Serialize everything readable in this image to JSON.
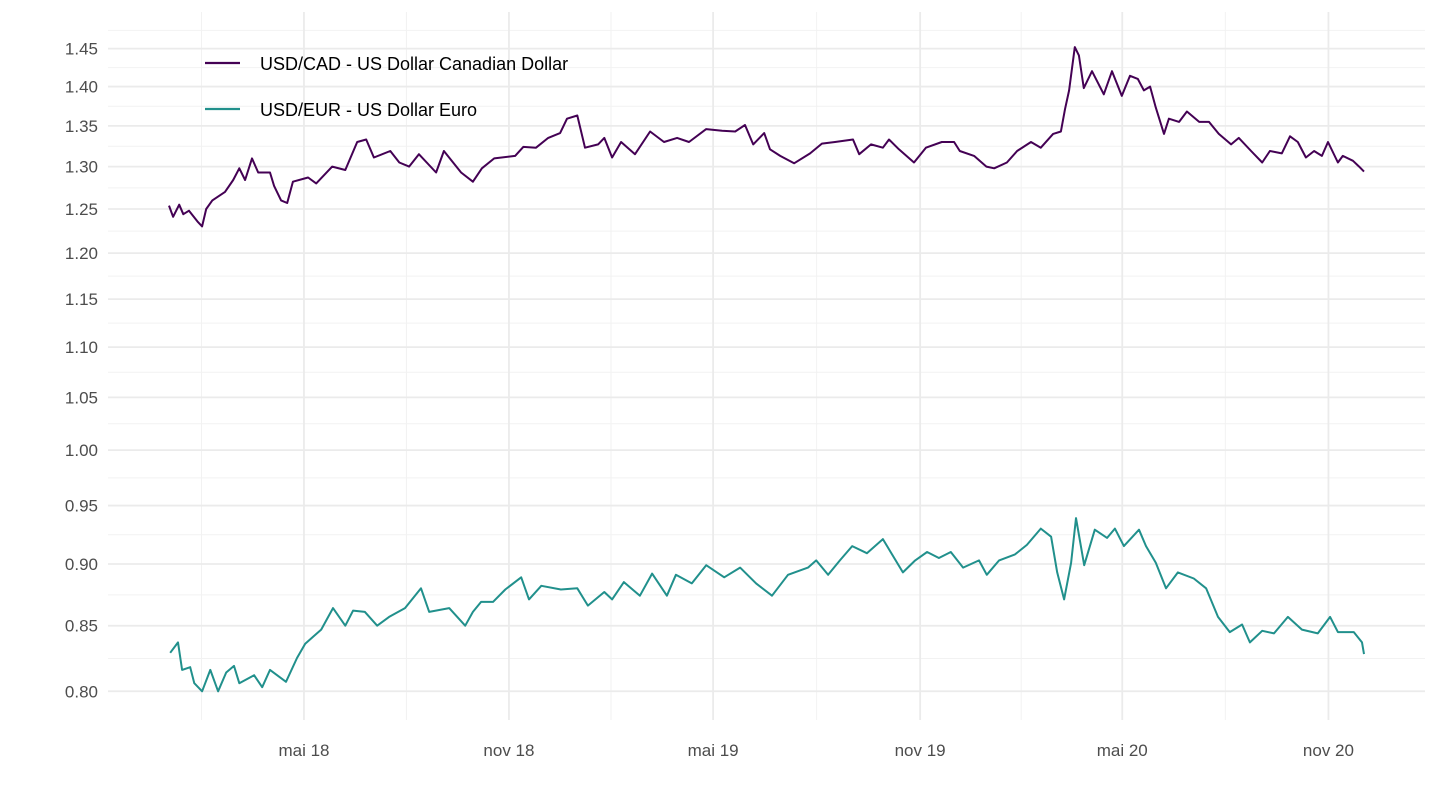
{
  "chart_data": {
    "type": "line",
    "title": "",
    "xlabel": "",
    "ylabel": "",
    "y_scale": "log",
    "ylim": [
      0.779,
      1.5
    ],
    "xlim": [
      2017.853,
      2021.072
    ],
    "x_units": "decimal year",
    "grid": true,
    "legend_position": "top-left",
    "y_ticks": [
      0.8,
      0.85,
      0.9,
      0.95,
      1.0,
      1.05,
      1.1,
      1.15,
      1.2,
      1.25,
      1.3,
      1.35,
      1.4,
      1.45
    ],
    "y_tick_labels": [
      "0.80",
      "0.85",
      "0.90",
      "0.95",
      "1.00",
      "1.05",
      "1.10",
      "1.15",
      "1.20",
      "1.25",
      "1.30",
      "1.35",
      "1.40",
      "1.45"
    ],
    "x_ticks": [
      2018.332,
      2018.833,
      2019.332,
      2019.838,
      2020.332,
      2020.836
    ],
    "x_tick_labels": [
      "mai 18",
      "nov 18",
      "mai 19",
      "nov 19",
      "mai 20",
      "nov 20"
    ],
    "series": [
      {
        "name": "USD/CAD - US Dollar Canadian Dollar",
        "color": "#440154",
        "x": [
          2018.002,
          2018.012,
          2018.027,
          2018.037,
          2018.051,
          2018.073,
          2018.083,
          2018.093,
          2018.108,
          2018.139,
          2018.159,
          2018.174,
          2018.188,
          2018.205,
          2018.22,
          2018.249,
          2018.259,
          2018.276,
          2018.291,
          2018.305,
          2018.342,
          2018.362,
          2018.401,
          2018.433,
          2018.462,
          2018.484,
          2018.503,
          2018.543,
          2018.565,
          2018.589,
          2018.613,
          2018.655,
          2018.674,
          2018.716,
          2018.745,
          2018.767,
          2018.797,
          2018.848,
          2018.868,
          2018.899,
          2018.929,
          2018.958,
          2018.975,
          2019.0,
          2019.019,
          2019.051,
          2019.066,
          2019.085,
          2019.107,
          2019.141,
          2019.178,
          2019.212,
          2019.244,
          2019.273,
          2019.315,
          2019.354,
          2019.386,
          2019.41,
          2019.43,
          2019.457,
          2019.471,
          2019.496,
          2019.53,
          2019.569,
          2019.598,
          2019.63,
          2019.674,
          2019.689,
          2019.718,
          2019.747,
          2019.762,
          2019.786,
          2019.823,
          2019.852,
          2019.891,
          2019.921,
          2019.935,
          2019.97,
          2020.0,
          2020.019,
          2020.05,
          2020.075,
          2020.109,
          2020.133,
          2020.163,
          2020.182,
          2020.192,
          2020.202,
          2020.216,
          2020.226,
          2020.238,
          2020.258,
          2020.287,
          2020.307,
          2020.331,
          2020.351,
          2020.37,
          2020.385,
          2020.4,
          2020.414,
          2020.434,
          2020.446,
          2020.471,
          2020.49,
          2020.52,
          2020.544,
          2020.568,
          2020.598,
          2020.617,
          2020.647,
          2020.674,
          2020.693,
          2020.722,
          2020.742,
          2020.761,
          2020.781,
          2020.801,
          2020.82,
          2020.835,
          2020.859,
          2020.871,
          2020.896,
          2020.911,
          2020.923
        ],
        "values": [
          1.254,
          1.241,
          1.255,
          1.244,
          1.248,
          1.235,
          1.23,
          1.25,
          1.26,
          1.27,
          1.284,
          1.298,
          1.284,
          1.31,
          1.293,
          1.293,
          1.277,
          1.26,
          1.257,
          1.282,
          1.287,
          1.28,
          1.3,
          1.296,
          1.33,
          1.333,
          1.311,
          1.319,
          1.305,
          1.3,
          1.315,
          1.293,
          1.319,
          1.293,
          1.282,
          1.298,
          1.31,
          1.313,
          1.324,
          1.323,
          1.335,
          1.341,
          1.359,
          1.363,
          1.323,
          1.327,
          1.335,
          1.311,
          1.33,
          1.315,
          1.343,
          1.33,
          1.335,
          1.33,
          1.346,
          1.344,
          1.343,
          1.351,
          1.327,
          1.341,
          1.321,
          1.313,
          1.304,
          1.316,
          1.328,
          1.33,
          1.333,
          1.315,
          1.327,
          1.323,
          1.333,
          1.321,
          1.305,
          1.323,
          1.33,
          1.33,
          1.319,
          1.313,
          1.3,
          1.298,
          1.305,
          1.319,
          1.33,
          1.323,
          1.34,
          1.343,
          1.371,
          1.395,
          1.452,
          1.441,
          1.398,
          1.42,
          1.39,
          1.42,
          1.388,
          1.414,
          1.41,
          1.395,
          1.4,
          1.373,
          1.34,
          1.359,
          1.355,
          1.368,
          1.355,
          1.355,
          1.34,
          1.327,
          1.335,
          1.319,
          1.305,
          1.319,
          1.316,
          1.337,
          1.33,
          1.311,
          1.319,
          1.313,
          1.33,
          1.305,
          1.313,
          1.307,
          1.3,
          1.294
        ]
      },
      {
        "name": "USD/EUR - US Dollar Euro",
        "color": "#21908C",
        "x": [
          2018.005,
          2018.024,
          2018.034,
          2018.054,
          2018.064,
          2018.083,
          2018.103,
          2018.122,
          2018.142,
          2018.161,
          2018.174,
          2018.21,
          2018.23,
          2018.249,
          2018.288,
          2018.315,
          2018.335,
          2018.374,
          2018.403,
          2018.433,
          2018.452,
          2018.481,
          2018.511,
          2018.54,
          2018.579,
          2018.618,
          2018.638,
          2018.687,
          2018.726,
          2018.745,
          2018.765,
          2018.794,
          2018.824,
          2018.863,
          2018.882,
          2018.912,
          2018.96,
          2019.0,
          2019.026,
          2019.066,
          2019.085,
          2019.114,
          2019.153,
          2019.183,
          2019.219,
          2019.241,
          2019.28,
          2019.315,
          2019.359,
          2019.398,
          2019.437,
          2019.476,
          2019.515,
          2019.564,
          2019.584,
          2019.613,
          2019.642,
          2019.672,
          2019.708,
          2019.747,
          2019.796,
          2019.826,
          2019.855,
          2019.884,
          2019.913,
          2019.943,
          2019.982,
          2020.001,
          2020.031,
          2020.07,
          2020.099,
          2020.133,
          2020.158,
          2020.173,
          2020.19,
          2020.207,
          2020.219,
          2020.239,
          2020.265,
          2020.295,
          2020.314,
          2020.336,
          2020.373,
          2020.39,
          2020.414,
          2020.439,
          2020.468,
          2020.507,
          2020.537,
          2020.566,
          2020.595,
          2020.625,
          2020.644,
          2020.674,
          2020.703,
          2020.737,
          2020.771,
          2020.81,
          2020.84,
          2020.859,
          2020.898,
          2020.918,
          2020.923
        ],
        "values": [
          0.829,
          0.837,
          0.816,
          0.818,
          0.806,
          0.8,
          0.816,
          0.8,
          0.814,
          0.819,
          0.806,
          0.812,
          0.803,
          0.816,
          0.807,
          0.825,
          0.836,
          0.847,
          0.864,
          0.85,
          0.862,
          0.861,
          0.85,
          0.857,
          0.864,
          0.88,
          0.861,
          0.864,
          0.85,
          0.861,
          0.869,
          0.869,
          0.879,
          0.889,
          0.871,
          0.882,
          0.879,
          0.88,
          0.866,
          0.877,
          0.871,
          0.885,
          0.874,
          0.892,
          0.874,
          0.891,
          0.884,
          0.899,
          0.889,
          0.897,
          0.884,
          0.874,
          0.891,
          0.897,
          0.903,
          0.891,
          0.903,
          0.915,
          0.909,
          0.921,
          0.893,
          0.903,
          0.91,
          0.905,
          0.91,
          0.897,
          0.903,
          0.891,
          0.903,
          0.908,
          0.916,
          0.93,
          0.923,
          0.893,
          0.871,
          0.901,
          0.939,
          0.899,
          0.929,
          0.922,
          0.93,
          0.915,
          0.929,
          0.915,
          0.901,
          0.88,
          0.893,
          0.888,
          0.88,
          0.857,
          0.845,
          0.851,
          0.837,
          0.846,
          0.844,
          0.857,
          0.847,
          0.844,
          0.857,
          0.845,
          0.845,
          0.837,
          0.828
        ]
      }
    ]
  }
}
